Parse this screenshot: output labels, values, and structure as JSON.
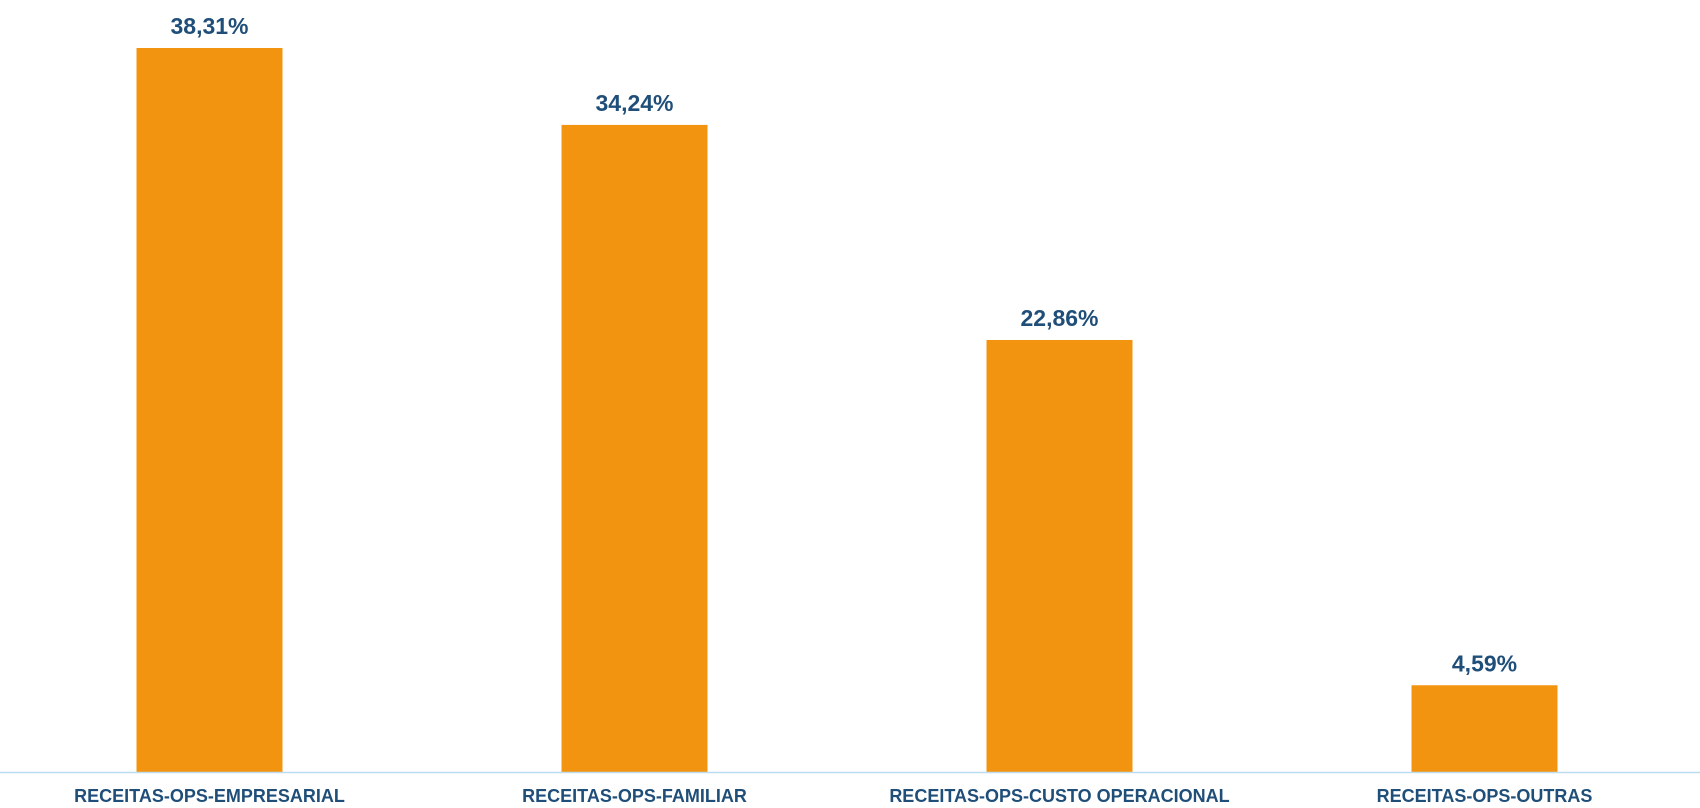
{
  "chart_data": {
    "type": "bar",
    "categories": [
      "RECEITAS-OPS-EMPRESARIAL",
      "RECEITAS-OPS-FAMILIAR",
      "RECEITAS-OPS-CUSTO OPERACIONAL",
      "RECEITAS-OPS-OUTRAS"
    ],
    "values": [
      38.31,
      34.24,
      22.86,
      4.59
    ],
    "data_labels": [
      "38,31%",
      "34,24%",
      "22,86%",
      "4,59%"
    ],
    "title": "",
    "xlabel": "",
    "ylabel": "",
    "ylim": [
      0,
      38.31
    ],
    "grid": false,
    "legend": "none"
  },
  "colors": {
    "bar": "#f39410",
    "label_text": "#1f4e79",
    "axis_line": "#bcdcef"
  }
}
